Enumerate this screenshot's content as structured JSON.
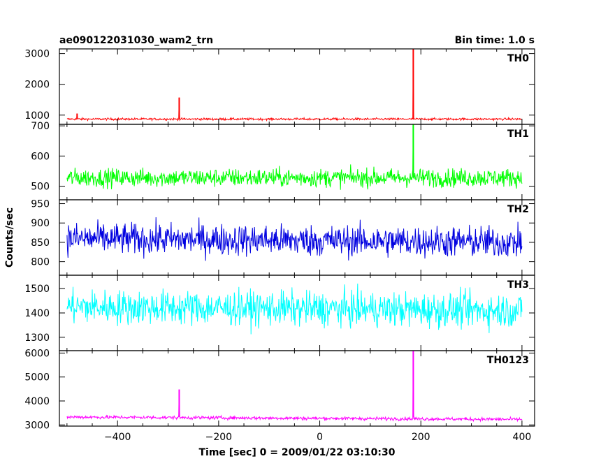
{
  "chart_data": {
    "type": "line",
    "title": "ae090122031030_wam2_trn",
    "bin_time": "Bin time: 1.0 s",
    "xlabel": "Time [sec] 0 = 2009/01/22 03:10:30",
    "ylabel": "Counts/sec",
    "xlim": [
      -515,
      425
    ],
    "xticks": [
      -400,
      -200,
      0,
      200,
      400
    ],
    "grid": false,
    "panels": [
      {
        "name": "TH0",
        "color": "#ff0000",
        "ylim": [
          700,
          3150
        ],
        "yticks": [
          1000,
          2000,
          3000
        ],
        "baseline": 870,
        "noise": 35,
        "drift": 0,
        "spikes": [
          {
            "x": -480,
            "y": 1050
          },
          {
            "x": -278,
            "y": 1570
          },
          {
            "x": 185,
            "y": 3150
          }
        ]
      },
      {
        "name": "TH1",
        "color": "#00ff00",
        "ylim": [
          455,
          705
        ],
        "yticks": [
          500,
          600,
          700
        ],
        "baseline": 528,
        "noise": 30,
        "drift": 0,
        "spikes": [
          {
            "x": 185,
            "y": 705
          }
        ]
      },
      {
        "name": "TH2",
        "color": "#0000e0",
        "ylim": [
          765,
          960
        ],
        "yticks": [
          800,
          850,
          900,
          950
        ],
        "baseline": 860,
        "noise": 40,
        "drift": -10,
        "spikes": []
      },
      {
        "name": "TH3",
        "color": "#00ffff",
        "ylim": [
          1245,
          1555
        ],
        "yticks": [
          1300,
          1400,
          1500
        ],
        "baseline": 1425,
        "noise": 70,
        "drift": -15,
        "spikes": []
      },
      {
        "name": "TH0123",
        "color": "#ff00ff",
        "ylim": [
          2950,
          6100
        ],
        "yticks": [
          3000,
          4000,
          5000,
          6000
        ],
        "baseline": 3330,
        "noise": 70,
        "drift": -100,
        "spikes": [
          {
            "x": -278,
            "y": 4480
          },
          {
            "x": 185,
            "y": 6100
          }
        ]
      }
    ]
  }
}
